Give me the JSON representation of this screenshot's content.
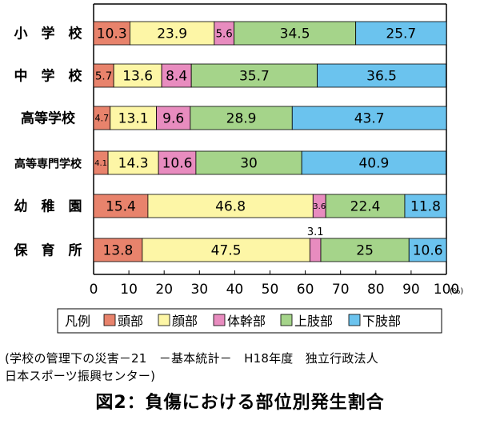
{
  "chart_data": {
    "type": "bar",
    "orientation": "horizontal",
    "stacked": true,
    "categories": [
      "小　学　校",
      "中　学　校",
      "高等学校",
      "高等専門学校",
      "幼　稚　園",
      "保　育　所"
    ],
    "series": [
      {
        "name": "頭部",
        "color": "#e8836c",
        "values": [
          10.3,
          5.7,
          4.7,
          4.1,
          15.4,
          13.8
        ]
      },
      {
        "name": "顔部",
        "color": "#fdf6a6",
        "values": [
          23.9,
          13.6,
          13.1,
          14.3,
          46.8,
          47.5
        ]
      },
      {
        "name": "体幹部",
        "color": "#e88cbf",
        "values": [
          5.6,
          8.4,
          9.6,
          10.6,
          3.6,
          3.1
        ]
      },
      {
        "name": "上肢部",
        "color": "#a5d48a",
        "values": [
          34.5,
          35.7,
          28.9,
          30.0,
          22.4,
          25.0
        ]
      },
      {
        "name": "下肢部",
        "color": "#6bc3ee",
        "values": [
          25.7,
          36.5,
          43.7,
          40.9,
          11.8,
          10.6
        ]
      }
    ],
    "xlim": [
      0,
      100
    ],
    "xticks": [
      "0",
      "10",
      "20",
      "30",
      "40",
      "50",
      "60",
      "70",
      "80",
      "90",
      "100"
    ],
    "xunit": "(%)",
    "legend_title": "凡例",
    "legend_position": "bottom"
  },
  "source_lines": [
    "(学校の管理下の災害－21　－基本統計－　H18年度　独立行政法人",
    "日本スポーツ振興センター)"
  ],
  "caption": "図2：負傷における部位別発生割合"
}
